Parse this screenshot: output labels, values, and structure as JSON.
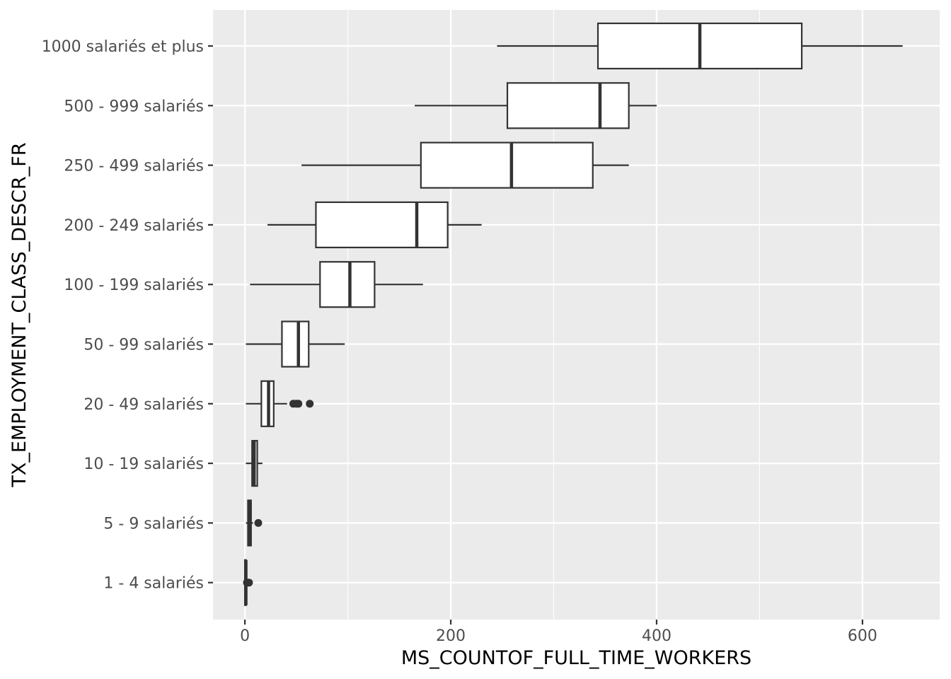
{
  "chart_data": {
    "type": "boxplot",
    "orientation": "horizontal",
    "xlabel": "MS_COUNTOF_FULL_TIME_WORKERS",
    "ylabel": "TX_EMPLOYMENT_CLASS_DESCR_FR",
    "xlim": [
      -31,
      675
    ],
    "x_ticks": [
      0,
      200,
      400,
      600
    ],
    "x_minor_ticks": [
      100,
      300,
      500
    ],
    "grid": true,
    "legend": "none",
    "colors": {
      "panel_background": "#ebebeb",
      "grid": "#ffffff",
      "box_fill": "#ffffff",
      "box_stroke": "#333333",
      "outlier": "#333333",
      "tick_text": "#4d4d4d",
      "title_text": "#000000"
    },
    "categories": [
      "1000 salariés et plus",
      "500 - 999 salariés",
      "250 - 499 salariés",
      "200 - 249 salariés",
      "100 - 199 salariés",
      "50 - 99 salariés",
      "20 - 49 salariés",
      "10 - 19 salariés",
      "5 - 9 salariés",
      "1 - 4 salariés"
    ],
    "boxes": [
      {
        "category": "1000 salariés et plus",
        "whisker_low": 245,
        "q1": 343,
        "median": 442,
        "q3": 541,
        "whisker_high": 639,
        "outliers": []
      },
      {
        "category": "500 - 999 salariés",
        "whisker_low": 165,
        "q1": 255,
        "median": 345,
        "q3": 373,
        "whisker_high": 400,
        "outliers": []
      },
      {
        "category": "250 - 499 salariés",
        "whisker_low": 55,
        "q1": 171,
        "median": 259,
        "q3": 338,
        "whisker_high": 373,
        "outliers": []
      },
      {
        "category": "200 - 249 salariés",
        "whisker_low": 22,
        "q1": 69,
        "median": 167,
        "q3": 197,
        "whisker_high": 230,
        "outliers": []
      },
      {
        "category": "100 - 199 salariés",
        "whisker_low": 5,
        "q1": 73,
        "median": 102,
        "q3": 126,
        "whisker_high": 173,
        "outliers": []
      },
      {
        "category": "50 - 99 salariés",
        "whisker_low": 1,
        "q1": 36,
        "median": 52,
        "q3": 62,
        "whisker_high": 97,
        "outliers": []
      },
      {
        "category": "20 - 49 salariés",
        "whisker_low": 1,
        "q1": 16,
        "median": 23,
        "q3": 28,
        "whisker_high": 41,
        "outliers": [
          47,
          50,
          52,
          63
        ]
      },
      {
        "category": "10 - 19 salariés",
        "whisker_low": 1,
        "q1": 7,
        "median": 9,
        "q3": 12,
        "whisker_high": 17,
        "outliers": []
      },
      {
        "category": "5 - 9 salariés",
        "whisker_low": 1,
        "q1": 3,
        "median": 4,
        "q3": 6,
        "whisker_high": 8,
        "outliers": [
          13
        ]
      },
      {
        "category": "1 - 4 salariés",
        "whisker_low": 0,
        "q1": 0,
        "median": 1,
        "q3": 1,
        "whisker_high": 1,
        "outliers": [
          2,
          3,
          4
        ]
      }
    ]
  }
}
